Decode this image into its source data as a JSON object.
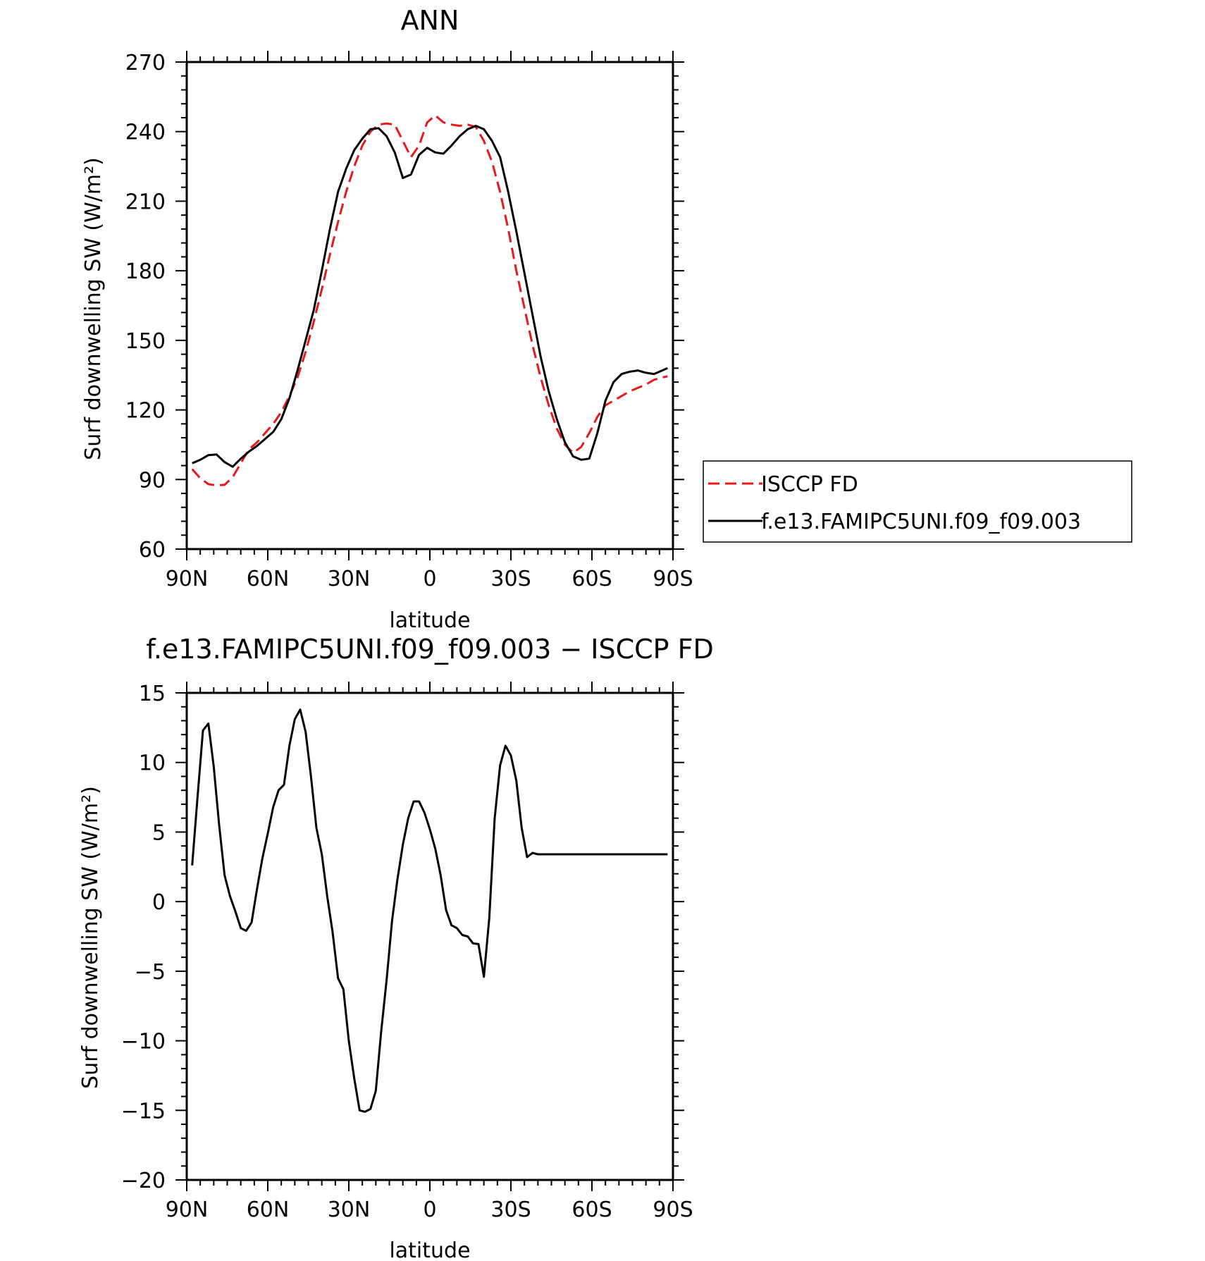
{
  "chart_data": [
    {
      "type": "line",
      "title": "ANN",
      "xlabel": "latitude",
      "ylabel": "Surf downwelling SW (W/m²)",
      "xlim": [
        -90,
        90
      ],
      "ylim": [
        60,
        270
      ],
      "x_ticks": [
        -90,
        -60,
        -30,
        0,
        30,
        60,
        90
      ],
      "x_tick_labels": [
        "90N",
        "60N",
        "30N",
        "0",
        "30S",
        "60S",
        "90S"
      ],
      "y_ticks": [
        60,
        90,
        120,
        150,
        180,
        210,
        240,
        270
      ],
      "y_tick_labels": [
        "60",
        "90",
        "120",
        "150",
        "180",
        "210",
        "240",
        "270"
      ],
      "legend": "right",
      "series": [
        {
          "name": "ISCCP FD",
          "color": "#e8191b",
          "style": "dashed",
          "x": [
            -88,
            -85,
            -82,
            -79,
            -76,
            -73,
            -70,
            -67,
            -64,
            -61,
            -58,
            -55,
            -52,
            -49,
            -46,
            -43,
            -40,
            -37,
            -34,
            -31,
            -28,
            -25,
            -22,
            -19,
            -16,
            -13,
            -10,
            -7,
            -4,
            -1,
            2,
            5,
            8,
            11,
            14,
            17,
            20,
            23,
            26,
            29,
            32,
            35,
            38,
            41,
            44,
            47,
            50,
            53,
            56,
            59,
            62,
            65,
            68,
            71,
            74,
            77,
            80,
            83,
            86,
            88
          ],
          "y": [
            94.5,
            90.5,
            88,
            87.5,
            87.7,
            91,
            97,
            103,
            106,
            110,
            114,
            119,
            126,
            134,
            145,
            158,
            172,
            187,
            201,
            214,
            225,
            234,
            240,
            243,
            243.5,
            243,
            236,
            229,
            234,
            244,
            247,
            244,
            243,
            242.5,
            243,
            242,
            236,
            227,
            214,
            198,
            180,
            164,
            148,
            134,
            122,
            112,
            105,
            101.5,
            104,
            110,
            117,
            122,
            124,
            126,
            128,
            129.5,
            131,
            133,
            134,
            134.5
          ]
        },
        {
          "name": "f.e13.FAMIPC5UNI.f09_f09.003",
          "color": "#000000",
          "style": "solid",
          "x": [
            -88,
            -85,
            -82,
            -79,
            -76,
            -73,
            -70,
            -67,
            -64,
            -61,
            -58,
            -55,
            -52,
            -49,
            -46,
            -43,
            -40,
            -37,
            -34,
            -31,
            -28,
            -25,
            -22,
            -19,
            -16,
            -13,
            -10,
            -7,
            -4,
            -1,
            2,
            5,
            8,
            11,
            14,
            17,
            20,
            23,
            26,
            29,
            32,
            35,
            38,
            41,
            44,
            47,
            50,
            53,
            56,
            59,
            62,
            65,
            68,
            71,
            74,
            77,
            80,
            83,
            86,
            88
          ],
          "y": [
            97,
            98.5,
            100.5,
            100.8,
            97.5,
            95.5,
            99,
            102,
            104.5,
            107.5,
            110.5,
            116,
            125,
            137,
            150,
            163,
            180,
            198,
            214,
            224,
            232,
            237,
            241,
            241.5,
            238,
            231,
            220,
            221.5,
            230,
            233,
            231,
            230.5,
            234,
            238,
            241,
            242.5,
            241,
            236,
            229,
            214,
            197,
            179,
            161,
            143,
            128,
            116,
            106,
            100,
            98.5,
            99,
            110,
            124,
            132,
            135.5,
            136.5,
            137,
            136,
            135.5,
            137,
            138
          ]
        }
      ]
    },
    {
      "type": "line",
      "title": "f.e13.FAMIPC5UNI.f09_f09.003 − ISCCP FD",
      "xlabel": "latitude",
      "ylabel": "Surf downwelling SW (W/m²)",
      "xlim": [
        -90,
        90
      ],
      "ylim": [
        -20,
        15
      ],
      "x_ticks": [
        -90,
        -60,
        -30,
        0,
        30,
        60,
        90
      ],
      "x_tick_labels": [
        "90N",
        "60N",
        "30N",
        "0",
        "30S",
        "60S",
        "90S"
      ],
      "y_ticks": [
        -20,
        -15,
        -10,
        -5,
        0,
        5,
        10,
        15
      ],
      "y_tick_labels": [
        "−20",
        "−15",
        "−10",
        "−5",
        "0",
        "5",
        "10",
        "15"
      ],
      "series": [
        {
          "color": "#000000",
          "style": "solid",
          "x": [
            -88,
            -86,
            -84,
            -82,
            -80,
            -78,
            -76,
            -74,
            -72,
            -70,
            -68,
            -66,
            -64,
            -62,
            -60,
            -58,
            -56,
            -54,
            -52,
            -50,
            -48,
            -46,
            -44,
            -42,
            -40,
            -38,
            -36,
            -34,
            -32,
            -30,
            -28,
            -26,
            -24,
            -22,
            -20,
            -18,
            -16,
            -14,
            -12,
            -10,
            -8,
            -6,
            -4,
            -2,
            0,
            2,
            4,
            6,
            8,
            10,
            12,
            14,
            16,
            18,
            20,
            22,
            24,
            26,
            28,
            30,
            32,
            34,
            36,
            38,
            40,
            42,
            44,
            46,
            48,
            50,
            52,
            54,
            56,
            58,
            60,
            62,
            64,
            66,
            68,
            70,
            72,
            74,
            76,
            78,
            80,
            82,
            84,
            86,
            88
          ],
          "y": [
            2.6,
            7.5,
            12.3,
            12.8,
            9.7,
            5.5,
            1.9,
            0.4,
            -0.7,
            -1.9,
            -2.1,
            -1.5,
            0.9,
            3.1,
            4.9,
            6.8,
            8.0,
            8.4,
            11.2,
            13.1,
            13.8,
            12.2,
            9.0,
            5.3,
            3.4,
            0.4,
            -2.2,
            -5.5,
            -6.3,
            -10.0,
            -12.7,
            -15.0,
            -15.1,
            -14.9,
            -13.6,
            -9.3,
            -5.6,
            -1.4,
            1.6,
            4.1,
            6.0,
            7.2,
            7.2,
            6.4,
            5.2,
            3.8,
            1.9,
            -0.6,
            -1.7,
            -1.9,
            -2.4,
            -2.5,
            -3.0,
            -3.05,
            -5.4,
            -1.2,
            6.0,
            9.8,
            11.2,
            10.5,
            8.7,
            5.3,
            3.2,
            3.5,
            3.4,
            3.4,
            3.4,
            3.4,
            3.4,
            3.4,
            3.4,
            3.4,
            3.4,
            3.4,
            3.4,
            3.4,
            3.4,
            3.4,
            3.4,
            3.4,
            3.4,
            3.4,
            3.4,
            3.4,
            3.4,
            3.4,
            3.4,
            3.4,
            3.4
          ]
        }
      ]
    }
  ]
}
